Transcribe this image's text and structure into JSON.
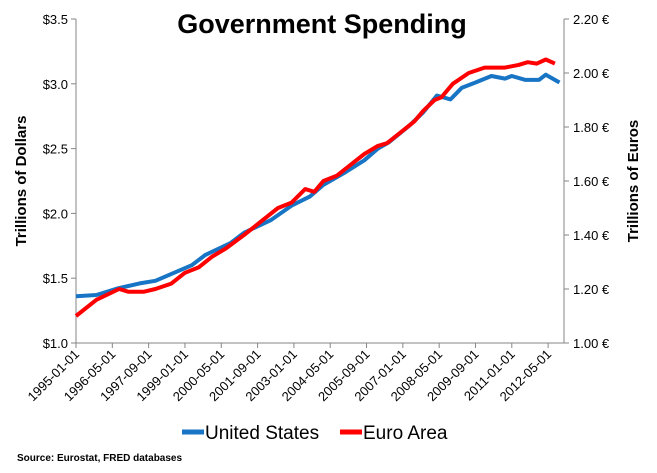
{
  "chart_data": {
    "type": "line",
    "title": "Government Spending",
    "ylabel_left": "Trillions of Dollars",
    "ylabel_right": "Trillions of Euros",
    "source": "Source: Eurostat, FRED databases",
    "x_unit": "months since 1995-01",
    "xlim": [
      0,
      215
    ],
    "x_ticks": [
      {
        "x": 0,
        "label": "1995-01-01"
      },
      {
        "x": 16,
        "label": "1996-05-01"
      },
      {
        "x": 32,
        "label": "1997-09-01"
      },
      {
        "x": 48,
        "label": "1999-01-01"
      },
      {
        "x": 64,
        "label": "2000-05-01"
      },
      {
        "x": 80,
        "label": "2001-09-01"
      },
      {
        "x": 96,
        "label": "2003-01-01"
      },
      {
        "x": 112,
        "label": "2004-05-01"
      },
      {
        "x": 128,
        "label": "2005-09-01"
      },
      {
        "x": 144,
        "label": "2007-01-01"
      },
      {
        "x": 160,
        "label": "2008-05-01"
      },
      {
        "x": 176,
        "label": "2009-09-01"
      },
      {
        "x": 192,
        "label": "2011-01-01"
      },
      {
        "x": 208,
        "label": "2012-05-01"
      }
    ],
    "ylim_left": [
      1.0,
      3.5
    ],
    "y_ticks_left": [
      {
        "v": 1.0,
        "label": "$1.0"
      },
      {
        "v": 1.5,
        "label": "$1.5"
      },
      {
        "v": 2.0,
        "label": "$2.0"
      },
      {
        "v": 2.5,
        "label": "$2.5"
      },
      {
        "v": 3.0,
        "label": "$3.0"
      },
      {
        "v": 3.5,
        "label": "$3.5"
      }
    ],
    "ylim_right": [
      1.0,
      2.2
    ],
    "y_ticks_right": [
      {
        "v": 1.0,
        "label": "1.00 €"
      },
      {
        "v": 1.2,
        "label": "1.20 €"
      },
      {
        "v": 1.4,
        "label": "1.40 €"
      },
      {
        "v": 1.6,
        "label": "1.60 €"
      },
      {
        "v": 1.8,
        "label": "1.80 €"
      },
      {
        "v": 2.0,
        "label": "2.00 €"
      },
      {
        "v": 2.2,
        "label": "2.20 €"
      }
    ],
    "legend_position": "bottom",
    "series": [
      {
        "name": "United States",
        "axis": "left",
        "color": "#1874c4",
        "points": [
          [
            0,
            1.36
          ],
          [
            9,
            1.37
          ],
          [
            18,
            1.42
          ],
          [
            28,
            1.46
          ],
          [
            35,
            1.48
          ],
          [
            51,
            1.6
          ],
          [
            57,
            1.68
          ],
          [
            68,
            1.77
          ],
          [
            74,
            1.85
          ],
          [
            86,
            1.95
          ],
          [
            95,
            2.06
          ],
          [
            103,
            2.13
          ],
          [
            109,
            2.22
          ],
          [
            118,
            2.31
          ],
          [
            127,
            2.41
          ],
          [
            133,
            2.5
          ],
          [
            138,
            2.55
          ],
          [
            147,
            2.68
          ],
          [
            153,
            2.78
          ],
          [
            159,
            2.91
          ],
          [
            165,
            2.88
          ],
          [
            170,
            2.97
          ],
          [
            176,
            3.01
          ],
          [
            183,
            3.06
          ],
          [
            189,
            3.04
          ],
          [
            192,
            3.06
          ],
          [
            198,
            3.03
          ],
          [
            204,
            3.03
          ],
          [
            207,
            3.07
          ],
          [
            213,
            3.01
          ]
        ]
      },
      {
        "name": "Euro Area",
        "axis": "right",
        "color": "#ff0000",
        "points": [
          [
            0,
            1.1
          ],
          [
            9,
            1.16
          ],
          [
            19,
            1.2
          ],
          [
            23,
            1.19
          ],
          [
            30,
            1.19
          ],
          [
            35,
            1.2
          ],
          [
            42,
            1.22
          ],
          [
            48,
            1.26
          ],
          [
            54,
            1.28
          ],
          [
            60,
            1.32
          ],
          [
            66,
            1.35
          ],
          [
            74,
            1.4
          ],
          [
            80,
            1.44
          ],
          [
            89,
            1.5
          ],
          [
            95,
            1.52
          ],
          [
            101,
            1.57
          ],
          [
            105,
            1.56
          ],
          [
            109,
            1.6
          ],
          [
            115,
            1.62
          ],
          [
            121,
            1.66
          ],
          [
            127,
            1.7
          ],
          [
            133,
            1.73
          ],
          [
            137,
            1.74
          ],
          [
            143,
            1.78
          ],
          [
            149,
            1.82
          ],
          [
            153,
            1.86
          ],
          [
            158,
            1.9
          ],
          [
            161,
            1.91
          ],
          [
            166,
            1.96
          ],
          [
            173,
            2.0
          ],
          [
            180,
            2.02
          ],
          [
            189,
            2.02
          ],
          [
            195,
            2.03
          ],
          [
            199,
            2.04
          ],
          [
            203,
            2.035
          ],
          [
            207,
            2.05
          ],
          [
            211,
            2.035
          ]
        ]
      }
    ]
  }
}
